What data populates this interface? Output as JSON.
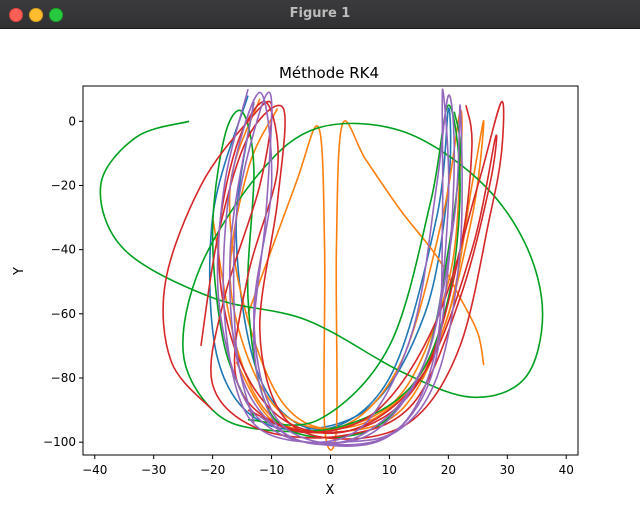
{
  "window": {
    "title": "Figure 1"
  },
  "chart_data": {
    "type": "line",
    "title": "Méthode RK4",
    "xlabel": "X",
    "ylabel": "Y",
    "xlim": [
      -42,
      42
    ],
    "ylim": [
      -104,
      11
    ],
    "xticks": [
      -40,
      -30,
      -20,
      -10,
      0,
      10,
      20,
      30,
      40
    ],
    "yticks": [
      -100,
      -80,
      -60,
      -40,
      -20,
      0
    ],
    "grid": false,
    "legend": "none",
    "colors": {
      "blue": "#1f77b4",
      "orange": "#ff7f0e",
      "green": "#00a020",
      "red": "#d62728",
      "purple": "#9467bd"
    },
    "series": [
      {
        "color": "#1f77b4",
        "points": [
          [
            -14,
            8
          ],
          [
            -20,
            -30
          ],
          [
            -19,
            -75
          ],
          [
            -10,
            -95
          ],
          [
            6,
            -90
          ],
          [
            16,
            -60
          ],
          [
            20,
            -20
          ],
          [
            20,
            4
          ],
          [
            18,
            -30
          ],
          [
            10,
            -80
          ],
          [
            -2,
            -96
          ],
          [
            -12,
            -80
          ],
          [
            -16,
            -35
          ],
          [
            -13,
            6
          ]
        ]
      },
      {
        "color": "#ff7f0e",
        "points": [
          [
            -20,
            -30
          ],
          [
            -16,
            -70
          ],
          [
            -10,
            -92
          ],
          [
            0,
            -96
          ],
          [
            12,
            -85
          ],
          [
            20,
            -50
          ],
          [
            22,
            -15
          ],
          [
            22,
            3
          ],
          [
            19,
            -30
          ],
          [
            12,
            -75
          ],
          [
            2,
            -95
          ],
          [
            -8,
            -88
          ],
          [
            -15,
            -55
          ],
          [
            -17,
            -20
          ],
          [
            -12,
            7
          ]
        ]
      },
      {
        "color": "#ff7f0e",
        "points": [
          [
            -14,
            -60
          ],
          [
            -6,
            -20
          ],
          [
            -2,
            -2
          ],
          [
            -1,
            -40
          ],
          [
            -1,
            -95
          ],
          [
            1,
            -96
          ],
          [
            1,
            -40
          ],
          [
            2,
            -1
          ],
          [
            6,
            -12
          ],
          [
            12,
            -28
          ],
          [
            18,
            -42
          ],
          [
            22,
            -55
          ],
          [
            25,
            -66
          ],
          [
            26,
            -76
          ]
        ]
      },
      {
        "color": "#ff7f0e",
        "points": [
          [
            -16,
            -75
          ],
          [
            -10,
            -93
          ],
          [
            0,
            -97
          ],
          [
            12,
            -90
          ],
          [
            20,
            -60
          ],
          [
            24,
            -20
          ],
          [
            26,
            0
          ],
          [
            24,
            -30
          ],
          [
            18,
            -70
          ],
          [
            8,
            -92
          ],
          [
            -4,
            -95
          ],
          [
            -12,
            -82
          ],
          [
            -17,
            -50
          ],
          [
            -14,
            -15
          ],
          [
            -9,
            4
          ]
        ]
      },
      {
        "color": "#00a020",
        "points": [
          [
            -24,
            0
          ],
          [
            -33,
            -5
          ],
          [
            -39,
            -20
          ],
          [
            -35,
            -40
          ],
          [
            -20,
            -55
          ],
          [
            -4,
            -62
          ],
          [
            12,
            -78
          ],
          [
            24,
            -86
          ],
          [
            33,
            -80
          ],
          [
            36,
            -60
          ],
          [
            33,
            -38
          ],
          [
            25,
            -18
          ],
          [
            12,
            -3
          ],
          [
            -2,
            -2
          ],
          [
            -12,
            -16
          ],
          [
            -22,
            -45
          ],
          [
            -25,
            -72
          ],
          [
            -20,
            -90
          ],
          [
            -12,
            -96
          ],
          [
            2,
            -95
          ],
          [
            14,
            -82
          ],
          [
            20,
            -55
          ],
          [
            22,
            -20
          ],
          [
            20,
            5
          ],
          [
            17,
            -25
          ],
          [
            10,
            -70
          ],
          [
            -2,
            -93
          ],
          [
            -14,
            -93
          ]
        ]
      },
      {
        "color": "#00a020",
        "points": [
          [
            -13,
            -92
          ],
          [
            -18,
            -70
          ],
          [
            -20,
            -35
          ],
          [
            -18,
            -5
          ],
          [
            -15,
            3
          ],
          [
            -13,
            -15
          ],
          [
            -14,
            -55
          ],
          [
            -11,
            -88
          ],
          [
            -4,
            -98
          ],
          [
            8,
            -95
          ],
          [
            16,
            -75
          ],
          [
            20,
            -40
          ],
          [
            22,
            -10
          ],
          [
            21,
            3
          ]
        ]
      },
      {
        "color": "#d62728",
        "points": [
          [
            -20,
            -90
          ],
          [
            -27,
            -75
          ],
          [
            -28,
            -50
          ],
          [
            -22,
            -20
          ],
          [
            -14,
            0
          ],
          [
            -10,
            5
          ],
          [
            -12,
            -20
          ],
          [
            -18,
            -55
          ],
          [
            -20,
            -82
          ],
          [
            -12,
            -96
          ],
          [
            2,
            -98
          ],
          [
            14,
            -88
          ],
          [
            22,
            -55
          ],
          [
            27,
            -20
          ],
          [
            28,
            -5
          ],
          [
            24,
            -40
          ],
          [
            16,
            -78
          ],
          [
            4,
            -96
          ],
          [
            -8,
            -93
          ],
          [
            -16,
            -72
          ],
          [
            -19,
            -40
          ],
          [
            -16,
            -8
          ],
          [
            -11,
            6
          ],
          [
            -9,
            -15
          ],
          [
            -14,
            -48
          ],
          [
            -16,
            -80
          ],
          [
            -8,
            -95
          ],
          [
            6,
            -95
          ],
          [
            16,
            -78
          ],
          [
            22,
            -40
          ],
          [
            24,
            -8
          ],
          [
            23,
            5
          ]
        ]
      },
      {
        "color": "#d62728",
        "points": [
          [
            -22,
            -70
          ],
          [
            -19,
            -35
          ],
          [
            -14,
            -5
          ],
          [
            -8,
            4
          ],
          [
            -9,
            -25
          ],
          [
            -12,
            -65
          ],
          [
            -8,
            -92
          ],
          [
            2,
            -99
          ],
          [
            14,
            -93
          ],
          [
            22,
            -70
          ],
          [
            27,
            -30
          ],
          [
            29,
            -10
          ],
          [
            29,
            6
          ],
          [
            25,
            -20
          ],
          [
            18,
            -62
          ],
          [
            8,
            -90
          ],
          [
            -4,
            -97
          ],
          [
            -14,
            -90
          ]
        ]
      },
      {
        "color": "#9467bd",
        "points": [
          [
            -14,
            10
          ],
          [
            -18,
            -20
          ],
          [
            -19,
            -55
          ],
          [
            -15,
            -85
          ],
          [
            -8,
            -98
          ],
          [
            2,
            -100
          ],
          [
            12,
            -95
          ],
          [
            18,
            -70
          ],
          [
            19,
            -30
          ],
          [
            19,
            10
          ],
          [
            20,
            -25
          ],
          [
            17,
            -70
          ],
          [
            8,
            -96
          ],
          [
            -4,
            -100
          ],
          [
            -14,
            -92
          ],
          [
            -18,
            -60
          ],
          [
            -17,
            -20
          ],
          [
            -12,
            9
          ],
          [
            -10,
            -20
          ],
          [
            -13,
            -60
          ],
          [
            -10,
            -90
          ],
          [
            -2,
            -100
          ],
          [
            10,
            -98
          ],
          [
            18,
            -80
          ],
          [
            22,
            -40
          ],
          [
            22,
            5
          ],
          [
            21,
            -30
          ],
          [
            16,
            -75
          ],
          [
            6,
            -97
          ],
          [
            -6,
            -99
          ],
          [
            -15,
            -80
          ],
          [
            -17,
            -40
          ],
          [
            -13,
            6
          ]
        ]
      },
      {
        "color": "#9467bd",
        "points": [
          [
            -13,
            -94
          ],
          [
            -16,
            -70
          ],
          [
            -16,
            -30
          ],
          [
            -12,
            3
          ],
          [
            -10,
            6
          ],
          [
            -11,
            -30
          ],
          [
            -13,
            -70
          ],
          [
            -9,
            -95
          ],
          [
            0,
            -101
          ],
          [
            10,
            -98
          ],
          [
            17,
            -80
          ],
          [
            20,
            -45
          ],
          [
            21,
            -10
          ],
          [
            20,
            8
          ],
          [
            18,
            -20
          ],
          [
            14,
            -65
          ],
          [
            6,
            -94
          ],
          [
            -4,
            -100
          ],
          [
            -12,
            -92
          ]
        ]
      }
    ]
  }
}
